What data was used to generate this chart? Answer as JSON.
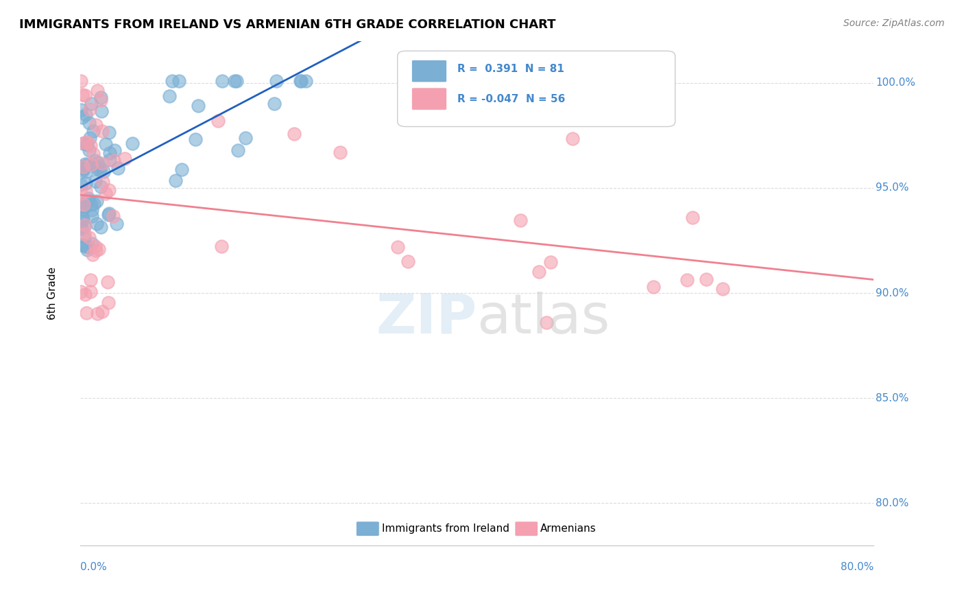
{
  "title": "IMMIGRANTS FROM IRELAND VS ARMENIAN 6TH GRADE CORRELATION CHART",
  "source": "Source: ZipAtlas.com",
  "ylabel": "6th Grade",
  "y_tick_labels": [
    "100.0%",
    "95.0%",
    "90.0%",
    "85.0%",
    "80.0%"
  ],
  "y_tick_values": [
    1.0,
    0.95,
    0.9,
    0.85,
    0.8
  ],
  "x_range": [
    0.0,
    0.8
  ],
  "y_range": [
    0.78,
    1.02
  ],
  "ireland_color": "#7bafd4",
  "armenian_color": "#f4a0b0",
  "ireland_line_color": "#2060c0",
  "armenian_line_color": "#f08090"
}
